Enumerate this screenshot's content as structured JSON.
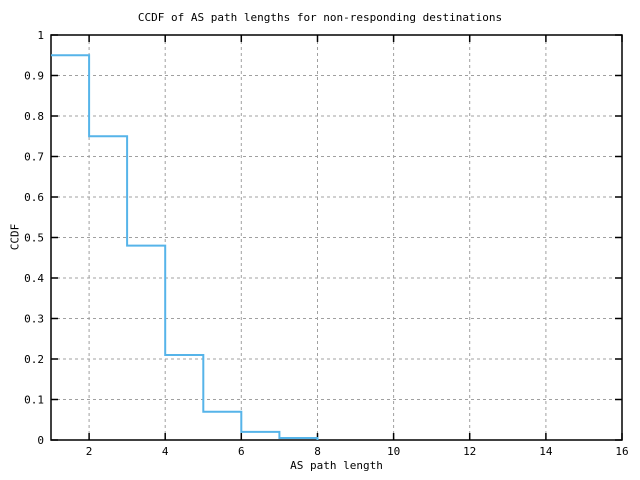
{
  "chart_data": {
    "type": "line",
    "style": "steps",
    "title": "CCDF of AS path lengths for non-responding destinations",
    "xlabel": "AS path length",
    "ylabel": "CCDF",
    "xlim": [
      1,
      16
    ],
    "ylim": [
      0,
      1
    ],
    "x": [
      1,
      2,
      3,
      4,
      5,
      6,
      7,
      8
    ],
    "values": [
      0.95,
      0.75,
      0.48,
      0.21,
      0.07,
      0.02,
      0.005,
      0
    ],
    "x_tick_values": [
      2,
      4,
      6,
      8,
      10,
      12,
      14,
      16
    ],
    "x_tick_labels": [
      "2",
      "4",
      "6",
      "8",
      "10",
      "12",
      "14",
      "16"
    ],
    "y_tick_values": [
      0,
      0.1,
      0.2,
      0.3,
      0.4,
      0.5,
      0.6,
      0.7,
      0.8,
      0.9,
      1
    ],
    "y_tick_labels": [
      "0",
      "0.1",
      "0.2",
      "0.3",
      "0.4",
      "0.5",
      "0.6",
      "0.7",
      "0.8",
      "0.9",
      "1"
    ],
    "grid": "dashed",
    "legend": "none",
    "line_color": "#56b4e9",
    "grid_color": "#a0a0a0",
    "axis_color": "#000000",
    "background": "#ffffff"
  }
}
